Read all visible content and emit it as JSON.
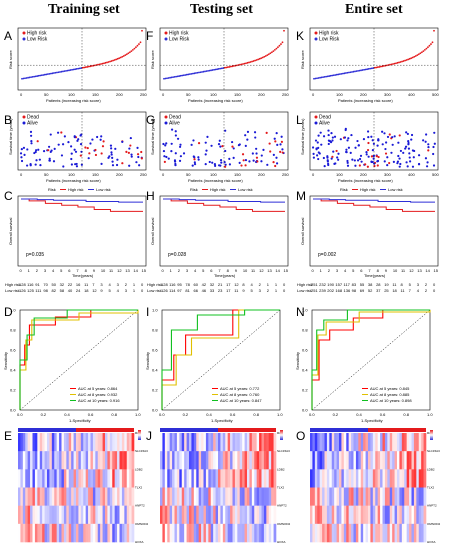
{
  "columns": [
    {
      "title": "Training set",
      "letters": [
        "A",
        "B",
        "C",
        "D",
        "E"
      ],
      "xmax_patients": 250,
      "ticks": [
        "0",
        "50",
        "100",
        "150",
        "200",
        "250"
      ],
      "pvalue": "p=0.035",
      "auc": [
        "AUC at 5 years: 0.864",
        "AUC at 8 years: 0.932",
        "AUC at 10 years: 0.916"
      ],
      "risk_high": [
        "128",
        "116",
        "91",
        "70",
        "50",
        "32",
        "22",
        "16",
        "11",
        "7",
        "3",
        "4",
        "3",
        "2",
        "1",
        "0"
      ],
      "risk_low": [
        "126",
        "125",
        "111",
        "98",
        "82",
        "58",
        "40",
        "24",
        "18",
        "12",
        "9",
        "5",
        "4",
        "3",
        "1",
        "0"
      ]
    },
    {
      "title": "Testing set",
      "letters": [
        "F",
        "G",
        "H",
        "I",
        "J"
      ],
      "xmax_patients": 250,
      "ticks": [
        "0",
        "50",
        "100",
        "150",
        "200",
        "250"
      ],
      "pvalue": "p=0.028",
      "auc": [
        "AUC at 5 years: 0.772",
        "AUC at 8 years: 0.760",
        "AUC at 10 years: 0.847"
      ],
      "risk_high": [
        "128",
        "116",
        "95",
        "78",
        "60",
        "42",
        "32",
        "21",
        "17",
        "12",
        "8",
        "4",
        "2",
        "1",
        "1",
        "0"
      ],
      "risk_low": [
        "126",
        "114",
        "97",
        "81",
        "66",
        "46",
        "33",
        "23",
        "17",
        "11",
        "9",
        "5",
        "3",
        "2",
        "1",
        "0"
      ]
    },
    {
      "title": "Entire set",
      "letters": [
        "K",
        "L",
        "M",
        "N",
        "O"
      ],
      "xmax_patients": 500,
      "ticks": [
        "0",
        "100",
        "200",
        "300",
        "400",
        "500"
      ],
      "pvalue": "p=0.002",
      "auc": [
        "AUC at 5 years: 0.845",
        "AUC at 8 years: 0.885",
        "AUC at 10 years: 0.898"
      ],
      "risk_high": [
        "251",
        "232",
        "190",
        "157",
        "117",
        "83",
        "55",
        "38",
        "28",
        "19",
        "11",
        "8",
        "5",
        "3",
        "2",
        "0"
      ],
      "risk_low": [
        "251",
        "239",
        "202",
        "168",
        "136",
        "98",
        "69",
        "52",
        "37",
        "25",
        "18",
        "11",
        "7",
        "4",
        "2",
        "0"
      ]
    }
  ],
  "risk_legend": [
    "High risk",
    "Low Risk"
  ],
  "status_legend": [
    "Dead",
    "Alive"
  ],
  "km_legend": [
    "Risk",
    "High risk",
    "Low risk"
  ],
  "labels": {
    "risk_y": "Risk score",
    "patients_x": "Patients (increasing risk score)",
    "survival_y": "Survival time (years)",
    "os_y": "Overall survival",
    "time_x": "Time(years)",
    "sens": "Sensitivity",
    "spec": "1-Specificity",
    "high_row": "High risk",
    "low_row": "Low risk"
  },
  "genes": [
    "Risk",
    "SLC15A3",
    "LDB2",
    "TLX2",
    "ANPT2",
    "OMNOD2",
    "HOXA"
  ],
  "colors": {
    "high": "#e41a1c",
    "low": "#2f2fd6",
    "auc5": "#ff0000",
    "auc8": "#e0c000",
    "auc10": "#10c020",
    "dead": "#e41a1c",
    "alive": "#1a1ad6"
  },
  "chart_data": [
    {
      "type": "scatter",
      "panel": "risk score",
      "ylabel": "Risk score",
      "xlabel": "Patients (increasing risk score)"
    },
    {
      "type": "scatter",
      "panel": "survival status",
      "ylabel": "Survival time (years)"
    },
    {
      "type": "line",
      "panel": "Kaplan-Meier",
      "ylabel": "Overall survival",
      "xlabel": "Time(years)",
      "x": [
        0,
        1,
        2,
        3,
        4,
        5,
        6,
        7,
        8,
        9,
        10,
        11,
        12,
        13,
        14,
        15
      ],
      "ylim": [
        0,
        1
      ]
    },
    {
      "type": "line",
      "panel": "ROC",
      "xlabel": "1-Specificity",
      "ylabel": "Sensitivity",
      "xlim": [
        0,
        1
      ],
      "ylim": [
        0,
        1
      ]
    },
    {
      "type": "heatmap",
      "panel": "expression heatmap"
    }
  ]
}
